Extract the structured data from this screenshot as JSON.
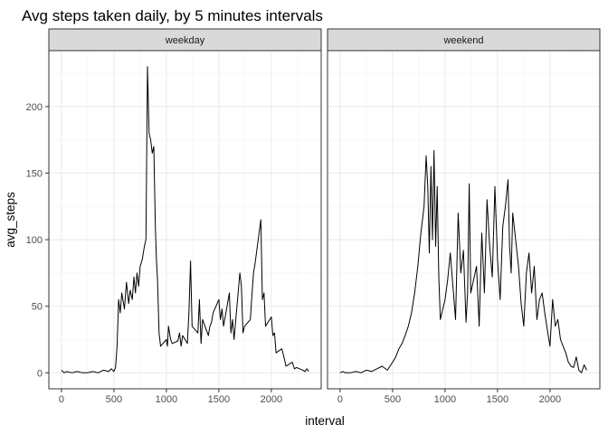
{
  "chart_data": {
    "type": "line",
    "title": "Avg steps taken daily, by 5 minutes intervals",
    "xlabel": "interval",
    "ylabel": "avg_steps",
    "xlim": [
      -120,
      2475
    ],
    "ylim": [
      -12,
      242
    ],
    "x_ticks": [
      0,
      500,
      1000,
      1500,
      2000
    ],
    "y_ticks": [
      0,
      50,
      100,
      150,
      200
    ],
    "grid": true,
    "facets": [
      {
        "label": "weekday",
        "x": [
          0,
          25,
          50,
          100,
          150,
          200,
          250,
          300,
          350,
          400,
          450,
          475,
          500,
          515,
          530,
          545,
          560,
          575,
          600,
          620,
          640,
          655,
          675,
          690,
          705,
          720,
          735,
          750,
          770,
          790,
          805,
          820,
          835,
          850,
          865,
          880,
          895,
          905,
          915,
          930,
          945,
          1000,
          1010,
          1020,
          1040,
          1055,
          1110,
          1125,
          1140,
          1155,
          1200,
          1215,
          1230,
          1245,
          1300,
          1315,
          1330,
          1345,
          1400,
          1415,
          1430,
          1445,
          1500,
          1515,
          1530,
          1545,
          1600,
          1615,
          1630,
          1645,
          1700,
          1715,
          1730,
          1745,
          1800,
          1815,
          1830,
          1845,
          1900,
          1915,
          1930,
          1945,
          2000,
          2015,
          2030,
          2045,
          2100,
          2120,
          2140,
          2200,
          2220,
          2240,
          2300,
          2320,
          2340,
          2355
        ],
        "values": [
          2,
          0,
          1,
          0,
          1,
          0,
          0,
          1,
          0,
          2,
          1,
          3,
          1,
          4,
          20,
          55,
          45,
          60,
          48,
          68,
          52,
          62,
          55,
          72,
          60,
          75,
          65,
          80,
          85,
          95,
          100,
          230,
          180,
          175,
          165,
          170,
          110,
          85,
          70,
          30,
          20,
          25,
          20,
          35,
          25,
          22,
          24,
          30,
          20,
          28,
          22,
          45,
          84,
          35,
          30,
          55,
          22,
          40,
          28,
          35,
          38,
          45,
          55,
          40,
          48,
          35,
          60,
          30,
          40,
          25,
          75,
          65,
          30,
          35,
          40,
          58,
          75,
          82,
          115,
          55,
          60,
          35,
          42,
          28,
          30,
          15,
          18,
          12,
          5,
          8,
          3,
          4,
          2,
          1,
          3,
          1
        ]
      },
      {
        "label": "weekend",
        "x": [
          0,
          25,
          50,
          100,
          150,
          200,
          250,
          300,
          350,
          400,
          450,
          500,
          530,
          560,
          590,
          620,
          650,
          680,
          710,
          740,
          770,
          800,
          820,
          835,
          850,
          865,
          880,
          895,
          910,
          925,
          940,
          955,
          1000,
          1025,
          1050,
          1075,
          1100,
          1125,
          1150,
          1175,
          1200,
          1215,
          1230,
          1245,
          1300,
          1325,
          1350,
          1375,
          1400,
          1425,
          1450,
          1475,
          1500,
          1525,
          1550,
          1575,
          1600,
          1615,
          1630,
          1645,
          1700,
          1725,
          1750,
          1775,
          1800,
          1825,
          1850,
          1875,
          1900,
          1925,
          1950,
          1975,
          2000,
          2025,
          2050,
          2075,
          2100,
          2125,
          2150,
          2175,
          2200,
          2225,
          2250,
          2275,
          2300,
          2325,
          2350
        ],
        "values": [
          0,
          1,
          0,
          0,
          1,
          0,
          2,
          1,
          3,
          5,
          2,
          8,
          12,
          18,
          22,
          28,
          35,
          45,
          60,
          80,
          105,
          125,
          163,
          140,
          90,
          155,
          100,
          167,
          95,
          140,
          72,
          40,
          55,
          70,
          90,
          65,
          40,
          120,
          75,
          92,
          38,
          60,
          142,
          60,
          80,
          35,
          105,
          60,
          130,
          95,
          72,
          140,
          85,
          55,
          110,
          125,
          145,
          95,
          75,
          120,
          80,
          52,
          35,
          75,
          90,
          60,
          80,
          40,
          55,
          60,
          45,
          32,
          20,
          55,
          35,
          40,
          25,
          20,
          15,
          8,
          5,
          4,
          12,
          2,
          0,
          6,
          2
        ]
      }
    ]
  }
}
